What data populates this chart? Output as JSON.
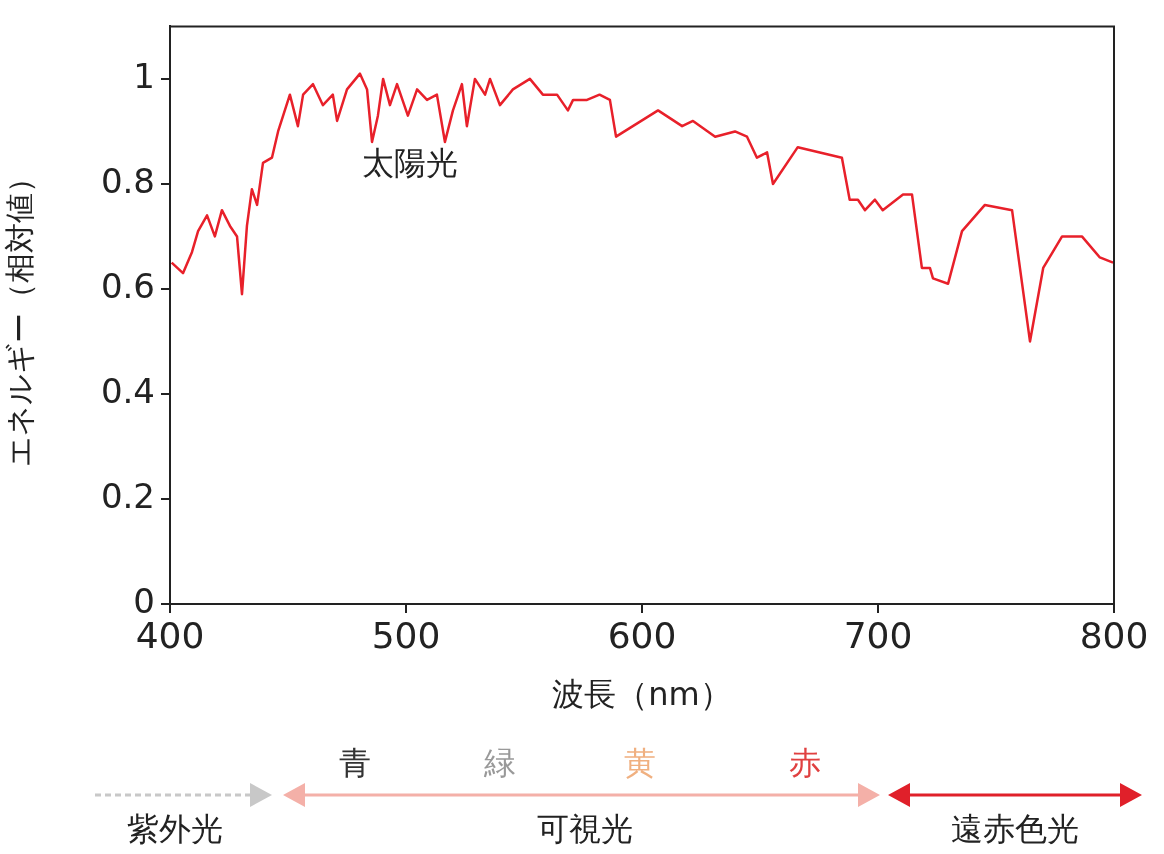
{
  "chart_data": {
    "type": "line",
    "xlabel": "波長（nm）",
    "ylabel": "エネルギー（相対値）",
    "xlim": [
      400,
      800
    ],
    "xticks": [
      400,
      500,
      600,
      700,
      800
    ],
    "ylim": [
      0,
      1.1
    ],
    "yticks": [
      0,
      0.2,
      0.4,
      0.6,
      0.8,
      1
    ],
    "grid": false,
    "legend": false,
    "marker": "none",
    "line_style": "solid",
    "series": [
      {
        "name": "太陽光",
        "color": "#e8202a",
        "x": [
          400.7,
          405.5,
          409.3,
          411.9,
          415.7,
          419,
          422,
          425.4,
          428.4,
          430.5,
          432.6,
          434.7,
          436.9,
          439.4,
          443.2,
          445.8,
          450.8,
          454.2,
          456.4,
          460.6,
          464.8,
          469,
          470.8,
          475,
          480.5,
          483.5,
          485.6,
          488.1,
          490.3,
          493.2,
          496.2,
          500.8,
          504.7,
          508.9,
          513.1,
          516.5,
          519.9,
          523.7,
          525.8,
          529.2,
          533.5,
          535.6,
          539.8,
          545.3,
          552.5,
          558,
          564,
          568.6,
          570.8,
          576.7,
          582,
          586.4,
          589,
          606.8,
          617,
          621.6,
          631,
          639.4,
          644.5,
          648.7,
          653,
          655.5,
          666,
          684.7,
          688,
          691.5,
          694.5,
          698.7,
          702,
          710.6,
          714.4,
          718.6,
          722,
          723.3,
          729.7,
          735.6,
          745.3,
          756.8,
          764.4,
          770,
          778,
          786.4,
          794,
          799.6
        ],
        "values": [
          0.65,
          0.63,
          0.67,
          0.71,
          0.74,
          0.7,
          0.75,
          0.72,
          0.7,
          0.59,
          0.72,
          0.79,
          0.76,
          0.84,
          0.85,
          0.9,
          0.97,
          0.91,
          0.97,
          0.99,
          0.95,
          0.97,
          0.92,
          0.98,
          1.01,
          0.98,
          0.88,
          0.93,
          1.0,
          0.95,
          0.99,
          0.93,
          0.98,
          0.96,
          0.97,
          0.88,
          0.94,
          0.99,
          0.91,
          1.0,
          0.97,
          1.0,
          0.95,
          0.98,
          1.0,
          0.97,
          0.97,
          0.94,
          0.96,
          0.96,
          0.97,
          0.96,
          0.89,
          0.94,
          0.91,
          0.92,
          0.89,
          0.9,
          0.89,
          0.85,
          0.86,
          0.8,
          0.87,
          0.85,
          0.77,
          0.77,
          0.75,
          0.77,
          0.75,
          0.78,
          0.78,
          0.64,
          0.64,
          0.62,
          0.61,
          0.71,
          0.76,
          0.75,
          0.5,
          0.64,
          0.7,
          0.7,
          0.66,
          0.65
        ]
      }
    ],
    "annotations": [
      "青",
      "緑",
      "黄",
      "赤",
      "紫外光",
      "可視光",
      "遠赤色光"
    ]
  }
}
